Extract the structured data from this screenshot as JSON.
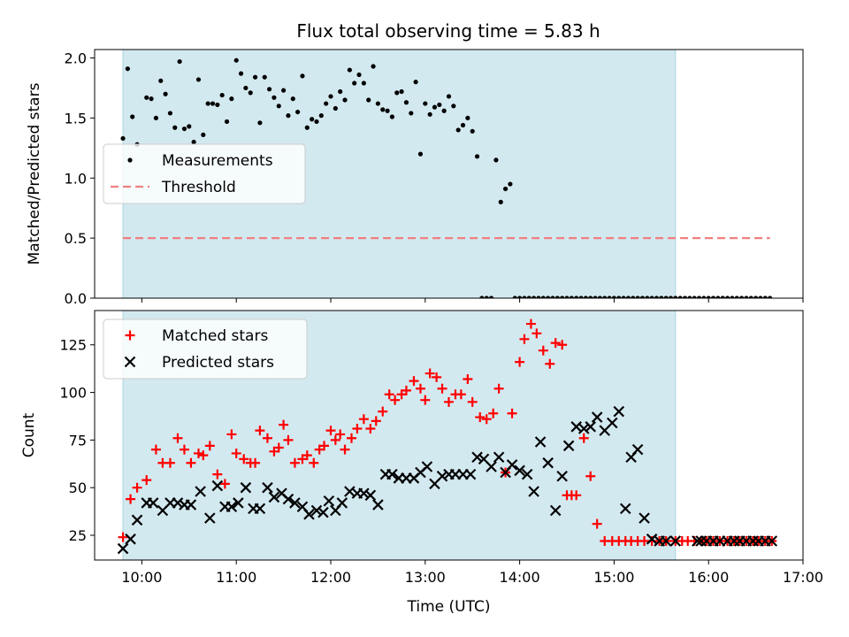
{
  "title": "Flux total observing time = 5.83 h",
  "colors": {
    "shade": "#d3e9f0",
    "measurement": "#000000",
    "threshold": "#f08080",
    "matched": "#ff0000",
    "predicted": "#000000"
  },
  "chart_data": [
    {
      "type": "scatter",
      "ylabel": "Matched/Predicted stars",
      "xlim": [
        9.5,
        17.0
      ],
      "ylim": [
        0.0,
        2.07
      ],
      "yticks": [
        "0.0",
        "0.5",
        "1.0",
        "1.5",
        "2.0"
      ],
      "ytick_values": [
        0.0,
        0.5,
        1.0,
        1.5,
        2.0
      ],
      "shaded_span": [
        9.8,
        15.65
      ],
      "legend": {
        "position": "center-left",
        "entries": [
          "Measurements",
          "Threshold"
        ]
      },
      "threshold": {
        "name": "Threshold",
        "y": 0.5,
        "x_range": [
          9.8,
          16.65
        ],
        "style": "dashed"
      },
      "series": [
        {
          "name": "Measurements",
          "marker": "dot",
          "x": [
            9.8,
            9.85,
            9.9,
            9.95,
            10.05,
            10.1,
            10.15,
            10.2,
            10.25,
            10.3,
            10.35,
            10.4,
            10.45,
            10.5,
            10.55,
            10.6,
            10.65,
            10.7,
            10.75,
            10.8,
            10.85,
            10.9,
            10.95,
            11.0,
            11.05,
            11.1,
            11.15,
            11.2,
            11.25,
            11.3,
            11.35,
            11.4,
            11.45,
            11.5,
            11.55,
            11.6,
            11.65,
            11.7,
            11.75,
            11.8,
            11.85,
            11.9,
            11.95,
            12.0,
            12.05,
            12.1,
            12.15,
            12.2,
            12.25,
            12.3,
            12.35,
            12.4,
            12.45,
            12.5,
            12.55,
            12.6,
            12.65,
            12.7,
            12.75,
            12.8,
            12.85,
            12.9,
            12.95,
            13.0,
            13.05,
            13.1,
            13.15,
            13.2,
            13.25,
            13.3,
            13.35,
            13.4,
            13.45,
            13.5,
            13.55,
            13.6,
            13.65,
            13.7,
            13.75,
            13.8,
            13.85,
            13.9,
            13.95,
            14.0,
            14.05,
            14.1,
            14.15,
            14.2,
            14.25,
            14.3,
            14.35,
            14.4,
            14.45,
            14.5,
            14.55,
            14.6,
            14.65,
            14.7,
            14.75,
            14.8,
            14.85,
            14.9,
            14.95,
            15.0,
            15.05,
            15.1,
            15.15,
            15.2,
            15.25,
            15.3,
            15.35,
            15.4,
            15.45,
            15.5,
            15.55,
            15.6,
            15.65,
            15.7,
            15.75,
            15.8,
            15.85,
            15.9,
            15.95,
            16.0,
            16.05,
            16.1,
            16.15,
            16.2,
            16.25,
            16.3,
            16.35,
            16.4,
            16.45,
            16.5,
            16.55,
            16.6,
            16.65
          ],
          "y": [
            1.33,
            1.91,
            1.51,
            1.28,
            1.67,
            1.66,
            1.5,
            1.81,
            1.7,
            1.54,
            1.42,
            1.97,
            1.41,
            1.43,
            1.3,
            1.82,
            1.36,
            1.62,
            1.62,
            1.61,
            1.69,
            1.47,
            1.66,
            1.98,
            1.87,
            1.75,
            1.71,
            1.84,
            1.46,
            1.84,
            1.74,
            1.67,
            1.6,
            1.73,
            1.52,
            1.66,
            1.55,
            1.85,
            1.42,
            1.49,
            1.47,
            1.52,
            1.62,
            1.68,
            1.58,
            1.72,
            1.65,
            1.9,
            1.79,
            1.86,
            1.79,
            1.65,
            1.93,
            1.62,
            1.57,
            1.56,
            1.51,
            1.71,
            1.72,
            1.63,
            1.54,
            1.8,
            1.2,
            1.62,
            1.53,
            1.59,
            1.61,
            1.56,
            1.68,
            1.6,
            1.4,
            1.44,
            1.5,
            1.39,
            1.18,
            0.0,
            0.0,
            0.0,
            1.15,
            0.8,
            0.91,
            0.95,
            0.0,
            0.0,
            0.0,
            0.0,
            0.0,
            0.0,
            0.0,
            0.0,
            0.0,
            0.0,
            0.0,
            0.0,
            0.0,
            0.0,
            0.0,
            0.0,
            0.0,
            0.0,
            0.0,
            0.0,
            0.0,
            0.0,
            0.0,
            0.0,
            0.0,
            0.0,
            0.0,
            0.0,
            0.0,
            0.0,
            0.0,
            0.0,
            0.0,
            0.0,
            0.0,
            0.0,
            0.0,
            0.0,
            0.0,
            0.0,
            0.0,
            0.0,
            0.0,
            0.0,
            0.0,
            0.0,
            0.0,
            0.0,
            0.0,
            0.0,
            0.0,
            0.0,
            0.0,
            0.0,
            0.0
          ]
        }
      ]
    },
    {
      "type": "scatter",
      "xlabel": "Time (UTC)",
      "ylabel": "Count",
      "xlim": [
        9.5,
        17.0
      ],
      "ylim": [
        12,
        143
      ],
      "xticks": [
        "10:00",
        "11:00",
        "12:00",
        "13:00",
        "14:00",
        "15:00",
        "16:00",
        "17:00"
      ],
      "xtick_values": [
        10,
        11,
        12,
        13,
        14,
        15,
        16,
        17
      ],
      "yticks": [
        "25",
        "50",
        "75",
        "100",
        "125"
      ],
      "ytick_values": [
        25,
        50,
        75,
        100,
        125
      ],
      "shaded_span": [
        9.8,
        15.65
      ],
      "legend": {
        "position": "top-left",
        "entries": [
          "Matched stars",
          "Predicted stars"
        ]
      },
      "series": [
        {
          "name": "Matched stars",
          "marker": "plus",
          "x": [
            9.8,
            9.88,
            9.95,
            10.05,
            10.15,
            10.22,
            10.3,
            10.38,
            10.45,
            10.52,
            10.6,
            10.65,
            10.72,
            10.8,
            10.88,
            10.95,
            11.0,
            11.08,
            11.15,
            11.2,
            11.25,
            11.33,
            11.4,
            11.45,
            11.5,
            11.55,
            11.62,
            11.7,
            11.75,
            11.82,
            11.88,
            11.93,
            12.0,
            12.05,
            12.1,
            12.15,
            12.22,
            12.28,
            12.35,
            12.42,
            12.48,
            12.55,
            12.62,
            12.68,
            12.75,
            12.8,
            12.88,
            12.95,
            13.0,
            13.05,
            13.12,
            13.18,
            13.25,
            13.32,
            13.38,
            13.45,
            13.5,
            13.58,
            13.65,
            13.72,
            13.78,
            13.85,
            13.92,
            14.0,
            14.05,
            14.12,
            14.18,
            14.25,
            14.32,
            14.38,
            14.45,
            14.5,
            14.55,
            14.6,
            14.68,
            14.75,
            14.82,
            14.9,
            14.98,
            15.05,
            15.12,
            15.18,
            15.25,
            15.32,
            15.4,
            15.48,
            15.55,
            15.65,
            15.72,
            15.78,
            15.85,
            15.92,
            15.98,
            16.05,
            16.12,
            16.2,
            16.27,
            16.33,
            16.4,
            16.47,
            16.53,
            16.6,
            16.67
          ],
          "y": [
            24,
            44,
            50,
            54,
            70,
            63,
            63,
            76,
            70,
            63,
            68,
            67,
            72,
            57,
            52,
            78,
            68,
            65,
            63,
            63,
            80,
            76,
            69,
            71,
            83,
            75,
            63,
            65,
            67,
            63,
            70,
            72,
            80,
            75,
            78,
            70,
            76,
            81,
            86,
            81,
            85,
            90,
            99,
            96,
            99,
            101,
            106,
            102,
            96,
            110,
            108,
            102,
            95,
            99,
            99,
            107,
            95,
            87,
            86,
            89,
            102,
            58,
            89,
            116,
            128,
            136,
            131,
            122,
            115,
            126,
            125,
            46,
            46,
            46,
            76,
            56,
            31,
            22,
            22,
            22,
            22,
            22,
            22,
            22,
            22,
            22,
            22,
            22,
            22,
            22,
            22,
            22,
            22,
            22,
            22,
            22,
            22,
            22,
            22,
            22,
            22,
            22,
            22
          ]
        },
        {
          "name": "Predicted stars",
          "marker": "x",
          "x": [
            9.8,
            9.88,
            9.95,
            10.05,
            10.12,
            10.22,
            10.3,
            10.38,
            10.45,
            10.52,
            10.62,
            10.72,
            10.8,
            10.88,
            10.95,
            11.02,
            11.1,
            11.18,
            11.25,
            11.33,
            11.4,
            11.48,
            11.55,
            11.62,
            11.7,
            11.77,
            11.85,
            11.92,
            11.98,
            12.05,
            12.12,
            12.2,
            12.28,
            12.35,
            12.42,
            12.5,
            12.58,
            12.65,
            12.72,
            12.8,
            12.88,
            12.95,
            13.02,
            13.1,
            13.18,
            13.25,
            13.32,
            13.4,
            13.48,
            13.55,
            13.62,
            13.7,
            13.78,
            13.85,
            13.92,
            14.0,
            14.08,
            14.15,
            14.22,
            14.3,
            14.38,
            14.45,
            14.52,
            14.6,
            14.68,
            14.75,
            14.82,
            14.9,
            14.98,
            15.05,
            15.12,
            15.18,
            15.25,
            15.32,
            15.4,
            15.48,
            15.55,
            15.65,
            15.88,
            15.92,
            15.98,
            16.05,
            16.12,
            16.2,
            16.27,
            16.33,
            16.4,
            16.47,
            16.53,
            16.6,
            16.67
          ],
          "y": [
            18,
            23,
            33,
            42,
            42,
            38,
            42,
            42,
            41,
            41,
            48,
            34,
            51,
            40,
            40,
            42,
            50,
            39,
            39,
            50,
            45,
            47,
            44,
            42,
            40,
            36,
            38,
            37,
            43,
            38,
            42,
            48,
            47,
            47,
            46,
            41,
            57,
            57,
            55,
            55,
            55,
            58,
            61,
            52,
            56,
            57,
            57,
            57,
            57,
            66,
            65,
            61,
            66,
            58,
            62,
            59,
            57,
            48,
            74,
            63,
            38,
            56,
            72,
            82,
            81,
            82,
            87,
            80,
            84,
            90,
            39,
            66,
            70,
            34,
            23,
            22,
            22,
            22,
            22,
            22,
            22,
            22,
            22,
            22,
            22,
            22,
            22,
            22,
            22,
            22,
            22
          ]
        }
      ]
    }
  ]
}
